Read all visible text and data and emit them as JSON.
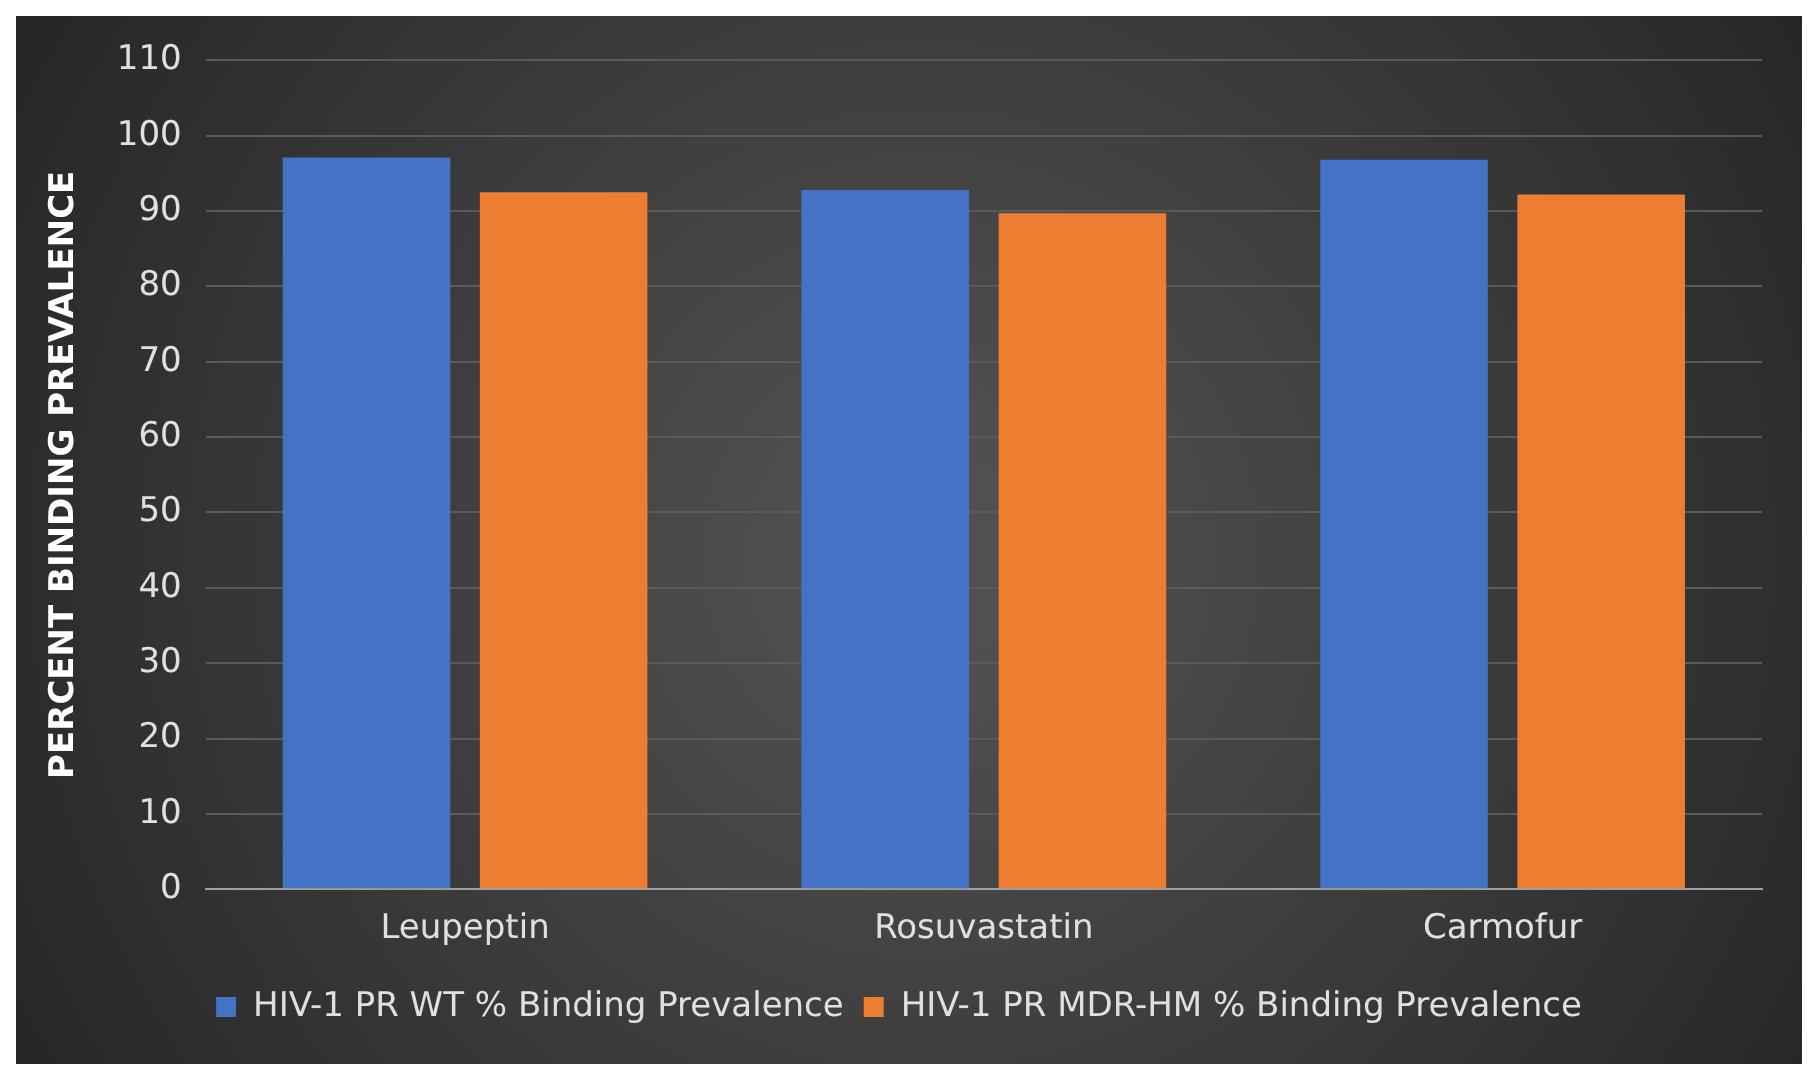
{
  "chart_data": {
    "type": "bar",
    "ylabel": "PERCENT BINDING PREVALENCE",
    "categories": [
      "Leupeptin",
      "Rosuvastatin",
      "Carmofur"
    ],
    "series": [
      {
        "name": "HIV-1 PR WT % Binding Prevalence",
        "color": "#4472c4",
        "values": [
          97.1,
          92.8,
          96.8
        ]
      },
      {
        "name": "HIV-1 PR MDR-HM % Binding Prevalence",
        "color": "#ed7d31",
        "values": [
          92.5,
          89.7,
          92.2
        ]
      }
    ],
    "ylim": [
      0,
      110
    ],
    "yticks": [
      0,
      10,
      20,
      30,
      40,
      50,
      60,
      70,
      80,
      90,
      100,
      110
    ],
    "grid": "y",
    "legend": "bottom"
  }
}
